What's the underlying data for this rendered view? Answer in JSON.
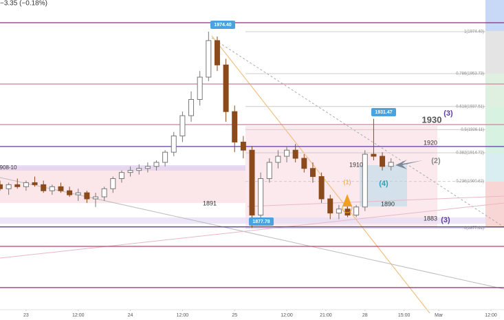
{
  "chart_data": {
    "type": "candlestick",
    "header": "−3.35 (−0.18%)",
    "xlim": [
      -6,
      110
    ],
    "ylim": [
      1837.4,
      1990
    ],
    "xticks": [
      {
        "value": 0,
        "label": "23"
      },
      {
        "value": 12,
        "label": "12:00"
      },
      {
        "value": 24,
        "label": "24"
      },
      {
        "value": 36,
        "label": "12:00"
      },
      {
        "value": 48,
        "label": "25"
      },
      {
        "value": 60,
        "label": "12:00"
      },
      {
        "value": 69,
        "label": "21:00"
      },
      {
        "value": 78,
        "label": "28"
      },
      {
        "value": 87,
        "label": "15:00"
      },
      {
        "value": 95,
        "label": "Mar"
      },
      {
        "value": 107,
        "label": "12:00"
      }
    ],
    "up_color": "#ffffff",
    "down_color": "#8b4a1c",
    "x": [
      -6,
      -4,
      -2,
      0,
      2,
      4,
      6,
      8,
      10,
      12,
      14,
      16,
      18,
      20,
      22,
      24,
      26,
      28,
      30,
      32,
      34,
      36,
      38,
      40,
      42,
      44,
      46,
      48,
      50,
      52,
      54,
      56,
      58,
      60,
      62,
      64,
      66,
      68,
      70,
      72,
      74,
      76,
      78,
      80,
      82,
      84
    ],
    "open": [
      1899,
      1897,
      1899,
      1898,
      1900,
      1899,
      1896,
      1898,
      1896,
      1894,
      1895,
      1892,
      1893,
      1897,
      1902,
      1905,
      1906,
      1907,
      1908,
      1910,
      1915,
      1923,
      1933,
      1941,
      1952,
      1970,
      1958,
      1935,
      1920,
      1916,
      1884,
      1902,
      1910,
      1913,
      1916,
      1912,
      1907,
      1903,
      1892,
      1885,
      1887,
      1884,
      1888,
      1914,
      1913,
      1908
    ],
    "high": [
      1901,
      1900,
      1902,
      1901,
      1903,
      1901,
      1899,
      1900,
      1898,
      1897,
      1896,
      1895,
      1898,
      1903,
      1906,
      1908,
      1909,
      1910,
      1911,
      1916,
      1925,
      1935,
      1945,
      1955,
      1974.4,
      1972,
      1961,
      1938,
      1923,
      1918,
      1905,
      1912,
      1916,
      1918,
      1919,
      1914,
      1910,
      1905,
      1894,
      1889,
      1890,
      1889,
      1916,
      1931.47,
      1915,
      1912
    ],
    "low": [
      1896,
      1894,
      1897,
      1896,
      1898,
      1895,
      1894,
      1895,
      1893,
      1891,
      1890,
      1888,
      1891,
      1895,
      1900,
      1903,
      1904,
      1905,
      1906,
      1908,
      1913,
      1920,
      1930,
      1938,
      1950,
      1955,
      1930,
      1915,
      1912,
      1877.78,
      1881,
      1900,
      1907,
      1910,
      1910,
      1905,
      1900,
      1890,
      1882,
      1882,
      1883,
      1883,
      1886,
      1911,
      1906,
      1906
    ],
    "close": [
      1897,
      1899,
      1898,
      1900,
      1899,
      1896,
      1898,
      1896,
      1894,
      1895,
      1892,
      1893,
      1897,
      1902,
      1905,
      1906,
      1907,
      1908,
      1910,
      1915,
      1923,
      1933,
      1941,
      1952,
      1970,
      1958,
      1935,
      1920,
      1916,
      1884,
      1902,
      1910,
      1913,
      1916,
      1912,
      1907,
      1903,
      1892,
      1885,
      1887,
      1884,
      1888,
      1914,
      1913,
      1908,
      1910
    ],
    "levels": [
      {
        "value": 1978.8,
        "color": "#8e2a7a"
      },
      {
        "value": 1948.6,
        "color": "#d58aa5"
      },
      {
        "value": 1928.6,
        "color": "#d58aa5"
      },
      {
        "value": 1917.8,
        "color": "#5b3c9c"
      },
      {
        "value": 1878.2,
        "color": "#5b3c9c"
      },
      {
        "value": 1868.6,
        "color": "#c2406e"
      },
      {
        "value": 1848.3,
        "color": "#8e2a7a"
      }
    ],
    "fib_levels": [
      1974.4,
      1953.73,
      1937.51,
      1926.11,
      1914.72,
      1900.62,
      1877.61
    ],
    "fib_labels": [
      "1(1974.40)",
      "0.786(1953.73)",
      "0.618(1937.51)",
      "0.5(1926.11)",
      "0.382(1914.72)",
      "0.236(1900.62)",
      "0(1877.61)"
    ],
    "callouts": [
      "1974.40",
      "1877.78",
      "1931.47"
    ],
    "annotations": [
      {
        "text": "1930",
        "color": "#555555"
      },
      {
        "text": "(3)",
        "color": "#5b3c9c"
      },
      {
        "text": "1920",
        "color": "#333333"
      },
      {
        "text": "1910",
        "color": "#333333"
      },
      {
        "text": "(4)",
        "color": "#2aa0b5"
      },
      {
        "text": "(2)",
        "color": "#888888"
      },
      {
        "text": "(1)",
        "color": "#f0a020"
      },
      {
        "text": "1890",
        "color": "#333333"
      },
      {
        "text": "1891",
        "color": "#333333"
      },
      {
        "text": "1883",
        "color": "#333333"
      },
      {
        "text": "(3)",
        "color": "#5b3c9c"
      },
      {
        "text": "908-10",
        "color": "#333333"
      }
    ]
  }
}
